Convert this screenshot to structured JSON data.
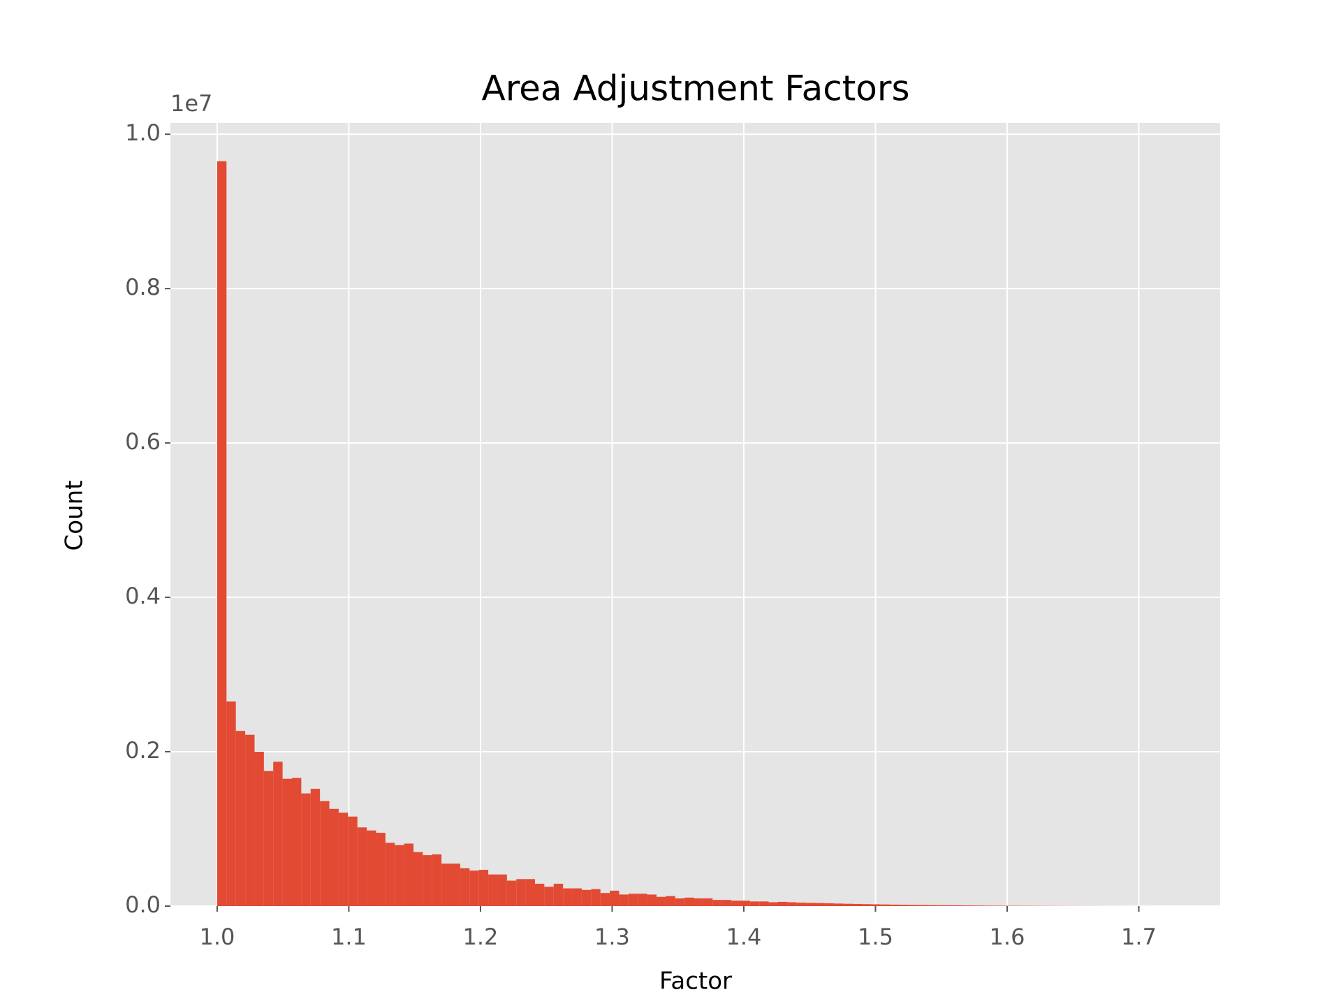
{
  "chart_data": {
    "type": "histogram",
    "title": "Area Adjustment Factors",
    "x_label": "Factor",
    "y_label": "Count",
    "y_offset_label": "1e7",
    "color": "#E24A33",
    "background": "#E5E5E5",
    "grid": true,
    "bins": [
      1.0,
      1.0071,
      1.0142,
      1.0213,
      1.0284,
      1.0355,
      1.0426,
      1.0497,
      1.0568,
      1.0639,
      1.071,
      1.0781,
      1.0852,
      1.0923,
      1.0994,
      1.1065,
      1.1136,
      1.1207,
      1.1278,
      1.1349,
      1.142,
      1.1491,
      1.1562,
      1.1633,
      1.1704,
      1.1775,
      1.1846,
      1.1917,
      1.1988,
      1.2059,
      1.213,
      1.2201,
      1.2272,
      1.2343,
      1.2414,
      1.2485,
      1.2556,
      1.2627,
      1.2698,
      1.2769,
      1.284,
      1.2911,
      1.2982,
      1.3053,
      1.3124,
      1.3195,
      1.3266,
      1.3337,
      1.3408,
      1.3479,
      1.355,
      1.3621,
      1.3692,
      1.3763,
      1.3834,
      1.3905,
      1.3976,
      1.4047,
      1.4118,
      1.4189,
      1.426,
      1.4331,
      1.4402,
      1.4473,
      1.4544,
      1.4615,
      1.4686,
      1.4757,
      1.4828,
      1.4899,
      1.497,
      1.5041,
      1.5112,
      1.5183,
      1.5254,
      1.5325,
      1.5396,
      1.5467,
      1.5538,
      1.5609,
      1.568,
      1.5751,
      1.5822,
      1.5893,
      1.5964,
      1.6035,
      1.6106,
      1.6177,
      1.6248,
      1.6319,
      1.639,
      1.6461,
      1.6532,
      1.6603,
      1.6674,
      1.6745,
      1.6816,
      1.6887,
      1.6958,
      1.7029,
      1.71
    ],
    "counts": [
      9650000,
      2650000,
      2270000,
      2220000,
      2000000,
      1750000,
      1870000,
      1650000,
      1660000,
      1460000,
      1520000,
      1360000,
      1260000,
      1210000,
      1160000,
      1020000,
      980000,
      950000,
      820000,
      790000,
      810000,
      700000,
      660000,
      670000,
      550000,
      550000,
      490000,
      460000,
      470000,
      410000,
      410000,
      330000,
      350000,
      350000,
      290000,
      250000,
      290000,
      230000,
      230000,
      210000,
      220000,
      170000,
      200000,
      150000,
      160000,
      160000,
      150000,
      120000,
      130000,
      100000,
      110000,
      100000,
      100000,
      80000,
      80000,
      70000,
      70000,
      60000,
      60000,
      50000,
      55000,
      50000,
      45000,
      42000,
      40000,
      36000,
      33000,
      30000,
      28000,
      25000,
      23000,
      21000,
      19000,
      17000,
      15000,
      14000,
      12000,
      11000,
      10000,
      9000,
      8000,
      7000,
      6000,
      5500,
      5000,
      4500,
      4000,
      3500,
      3000,
      2500,
      2000,
      1800,
      1500,
      1200,
      1000,
      800,
      600,
      400,
      300,
      200
    ],
    "xlim": [
      0.9645,
      1.7618
    ],
    "ylim": [
      0,
      10146000
    ],
    "xticks": [
      {
        "value": 1.0,
        "label": "1.0"
      },
      1.1,
      1.2,
      1.3,
      1.4,
      1.5,
      1.6,
      1.7
    ],
    "yticks": [
      {
        "value": 0,
        "label": "0.0"
      },
      {
        "value": 2000000,
        "label": "0.2"
      },
      {
        "value": 4000000,
        "label": "0.4"
      },
      {
        "value": 6000000,
        "label": "0.6"
      },
      {
        "value": 8000000,
        "label": "0.8"
      },
      {
        "value": 10000000,
        "label": "1.0"
      }
    ]
  }
}
